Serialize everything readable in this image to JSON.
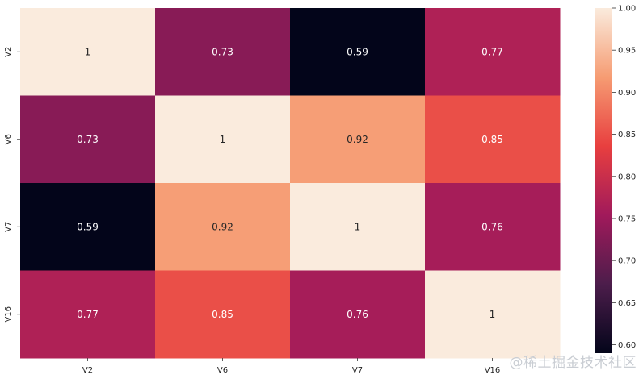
{
  "chart_data": {
    "type": "heatmap",
    "title": "",
    "xlabel": "",
    "ylabel": "",
    "x_categories": [
      "V2",
      "V6",
      "V7",
      "V16"
    ],
    "y_categories": [
      "V2",
      "V6",
      "V7",
      "V16"
    ],
    "values": [
      [
        1,
        0.73,
        0.59,
        0.77
      ],
      [
        0.73,
        1,
        0.92,
        0.85
      ],
      [
        0.59,
        0.92,
        1,
        0.76
      ],
      [
        0.77,
        0.85,
        0.76,
        1
      ]
    ],
    "cell_labels": [
      [
        "1",
        "0.73",
        "0.59",
        "0.77"
      ],
      [
        "0.73",
        "1",
        "0.92",
        "0.85"
      ],
      [
        "0.59",
        "0.92",
        "1",
        "0.76"
      ],
      [
        "0.77",
        "0.85",
        "0.76",
        "1"
      ]
    ],
    "colorbar": {
      "range": [
        0.59,
        1.0
      ],
      "ticks": [
        0.6,
        0.65,
        0.7,
        0.75,
        0.8,
        0.85,
        0.9,
        0.95,
        1.0
      ],
      "tick_labels": [
        "0.60",
        "0.65",
        "0.70",
        "0.75",
        "0.80",
        "0.85",
        "0.90",
        "0.95",
        "1.00"
      ],
      "colormap": "rocket",
      "colormap_stops": [
        "#03051a",
        "#4c1d4b",
        "#a11a5b",
        "#e83f3f",
        "#f69c73",
        "#faebdd"
      ]
    }
  },
  "watermark": "@稀土掘金技术社区"
}
